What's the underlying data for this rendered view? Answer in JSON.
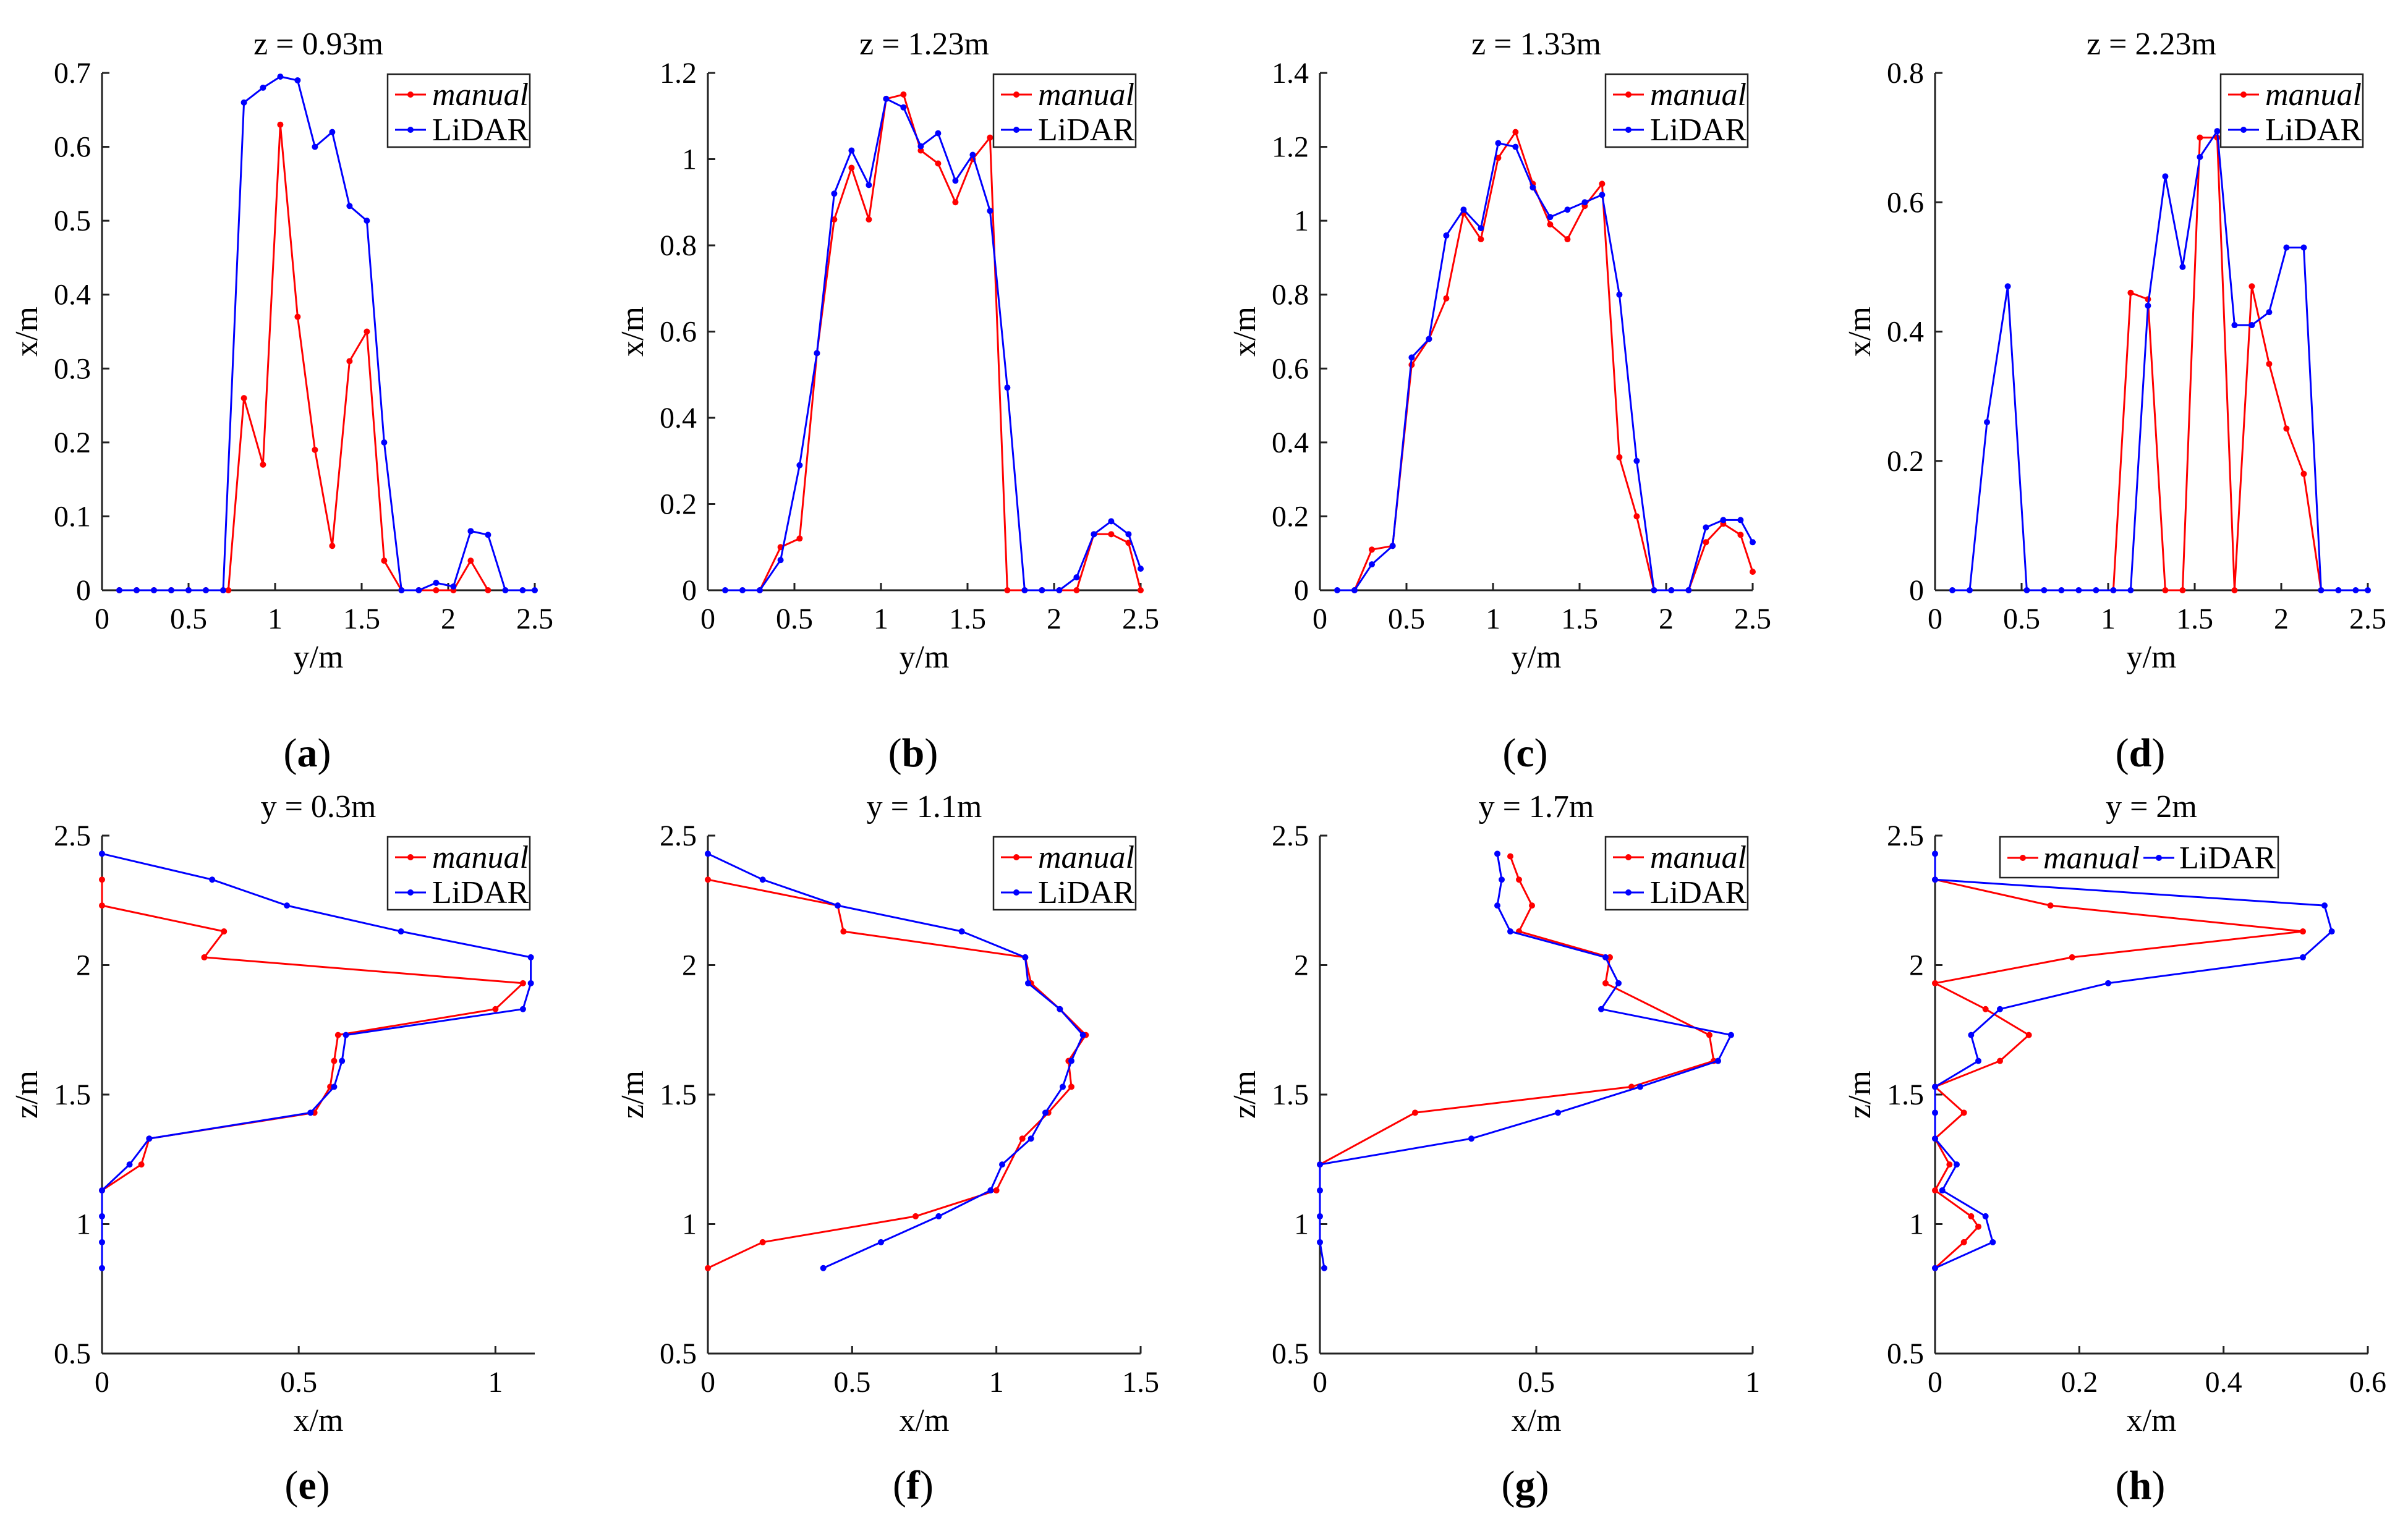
{
  "chart_data": [
    {
      "type": "line",
      "id": "a",
      "caption": "a",
      "title": "z = 0.93m",
      "xlabel": "y/m",
      "ylabel": "x/m",
      "xlim": [
        0,
        2.5
      ],
      "ylim": [
        0,
        0.7
      ],
      "xticks": [
        0,
        0.5,
        1,
        1.5,
        2,
        2.5
      ],
      "xtick_labels": [
        "0",
        "0.5",
        "1",
        "1.5",
        "2",
        "2.5"
      ],
      "yticks": [
        0,
        0.1,
        0.2,
        0.3,
        0.4,
        0.5,
        0.6,
        0.7
      ],
      "ytick_labels": [
        "0",
        "0.1",
        "0.2",
        "0.3",
        "0.4",
        "0.5",
        "0.6",
        "0.7"
      ],
      "legend": "top-right",
      "legend_layout": "vertical",
      "series": [
        {
          "name": "manual",
          "color": "#ff0000",
          "italic": true,
          "x": [
            0.1,
            0.2,
            0.3,
            0.4,
            0.5,
            0.6,
            0.7,
            0.73,
            0.82,
            0.93,
            1.03,
            1.13,
            1.23,
            1.33,
            1.43,
            1.53,
            1.63,
            1.73,
            1.83,
            1.93,
            2.03,
            2.13,
            2.23
          ],
          "y": [
            0,
            0,
            0,
            0,
            0,
            0,
            0,
            0,
            0.26,
            0.17,
            0.63,
            0.37,
            0.19,
            0.06,
            0.31,
            0.35,
            0.04,
            0,
            0,
            0,
            0,
            0.04,
            0
          ]
        },
        {
          "name": "LiDAR",
          "color": "#0000ff",
          "italic": false,
          "x": [
            0.1,
            0.2,
            0.3,
            0.4,
            0.5,
            0.6,
            0.7,
            0.82,
            0.93,
            1.03,
            1.13,
            1.23,
            1.33,
            1.43,
            1.53,
            1.63,
            1.73,
            1.83,
            1.93,
            2.03,
            2.13,
            2.23,
            2.33,
            2.43,
            2.5
          ],
          "y": [
            0,
            0,
            0,
            0,
            0,
            0,
            0,
            0.66,
            0.68,
            0.695,
            0.69,
            0.6,
            0.62,
            0.52,
            0.5,
            0.2,
            0,
            0,
            0.01,
            0.005,
            0.08,
            0.075,
            0,
            0,
            0
          ]
        }
      ]
    },
    {
      "type": "line",
      "id": "b",
      "caption": "b",
      "title": "z = 1.23m",
      "xlabel": "y/m",
      "ylabel": "x/m",
      "xlim": [
        0,
        2.5
      ],
      "ylim": [
        0,
        1.2
      ],
      "xticks": [
        0,
        0.5,
        1,
        1.5,
        2,
        2.5
      ],
      "xtick_labels": [
        "0",
        "0.5",
        "1",
        "1.5",
        "2",
        "2.5"
      ],
      "yticks": [
        0,
        0.2,
        0.4,
        0.6,
        0.8,
        1,
        1.2
      ],
      "ytick_labels": [
        "0",
        "0.2",
        "0.4",
        "0.6",
        "0.8",
        "1",
        "1.2"
      ],
      "legend": "top-right",
      "legend_layout": "vertical",
      "series": [
        {
          "name": "manual",
          "color": "#ff0000",
          "italic": true,
          "x": [
            0.3,
            0.42,
            0.53,
            0.63,
            0.73,
            0.83,
            0.93,
            1.03,
            1.13,
            1.23,
            1.33,
            1.43,
            1.53,
            1.63,
            1.73,
            1.83,
            1.93,
            2.03,
            2.13,
            2.23,
            2.33,
            2.43,
            2.5
          ],
          "y": [
            0,
            0.1,
            0.12,
            0.55,
            0.86,
            0.98,
            0.86,
            1.14,
            1.15,
            1.02,
            0.99,
            0.9,
            1.0,
            1.05,
            0,
            0,
            0,
            0,
            0,
            0.13,
            0.13,
            0.11,
            0
          ]
        },
        {
          "name": "LiDAR",
          "color": "#0000ff",
          "italic": false,
          "x": [
            0.1,
            0.2,
            0.3,
            0.42,
            0.53,
            0.63,
            0.73,
            0.83,
            0.93,
            1.03,
            1.13,
            1.23,
            1.33,
            1.43,
            1.53,
            1.63,
            1.73,
            1.83,
            1.93,
            2.03,
            2.13,
            2.23,
            2.33,
            2.43,
            2.5
          ],
          "y": [
            0,
            0,
            0,
            0.07,
            0.29,
            0.55,
            0.92,
            1.02,
            0.94,
            1.14,
            1.12,
            1.03,
            1.06,
            0.95,
            1.01,
            0.88,
            0.47,
            0,
            0,
            0,
            0.03,
            0.13,
            0.16,
            0.13,
            0.05
          ]
        }
      ]
    },
    {
      "type": "line",
      "id": "c",
      "caption": "c",
      "title": "z = 1.33m",
      "xlabel": "y/m",
      "ylabel": "x/m",
      "xlim": [
        0,
        2.5
      ],
      "ylim": [
        0,
        1.4
      ],
      "xticks": [
        0,
        0.5,
        1,
        1.5,
        2,
        2.5
      ],
      "xtick_labels": [
        "0",
        "0.5",
        "1",
        "1.5",
        "2",
        "2.5"
      ],
      "yticks": [
        0,
        0.2,
        0.4,
        0.6,
        0.8,
        1,
        1.2,
        1.4
      ],
      "ytick_labels": [
        "0",
        "0.2",
        "0.4",
        "0.6",
        "0.8",
        "1",
        "1.2",
        "1.4"
      ],
      "legend": "top-right",
      "legend_layout": "vertical",
      "series": [
        {
          "name": "manual",
          "color": "#ff0000",
          "italic": true,
          "x": [
            0.2,
            0.3,
            0.42,
            0.53,
            0.63,
            0.73,
            0.83,
            0.93,
            1.03,
            1.13,
            1.23,
            1.33,
            1.43,
            1.53,
            1.63,
            1.73,
            1.83,
            1.93,
            2.03,
            2.13,
            2.23,
            2.33,
            2.43,
            2.5
          ],
          "y": [
            0,
            0.11,
            0.12,
            0.61,
            0.68,
            0.79,
            1.02,
            0.95,
            1.17,
            1.24,
            1.1,
            0.99,
            0.95,
            1.04,
            1.1,
            0.36,
            0.2,
            0,
            0,
            0,
            0.13,
            0.18,
            0.15,
            0.05
          ]
        },
        {
          "name": "LiDAR",
          "color": "#0000ff",
          "italic": false,
          "x": [
            0.1,
            0.2,
            0.3,
            0.42,
            0.53,
            0.63,
            0.73,
            0.83,
            0.93,
            1.03,
            1.13,
            1.23,
            1.33,
            1.43,
            1.53,
            1.63,
            1.73,
            1.83,
            1.93,
            2.03,
            2.13,
            2.23,
            2.33,
            2.43,
            2.5
          ],
          "y": [
            0,
            0,
            0.07,
            0.12,
            0.63,
            0.68,
            0.96,
            1.03,
            0.98,
            1.21,
            1.2,
            1.09,
            1.01,
            1.03,
            1.05,
            1.07,
            0.8,
            0.35,
            0,
            0,
            0,
            0.17,
            0.19,
            0.19,
            0.13
          ]
        }
      ]
    },
    {
      "type": "line",
      "id": "d",
      "caption": "d",
      "title": "z = 2.23m",
      "xlabel": "y/m",
      "ylabel": "x/m",
      "xlim": [
        0,
        2.5
      ],
      "ylim": [
        0,
        0.8
      ],
      "xticks": [
        0,
        0.5,
        1,
        1.5,
        2,
        2.5
      ],
      "xtick_labels": [
        "0",
        "0.5",
        "1",
        "1.5",
        "2",
        "2.5"
      ],
      "yticks": [
        0,
        0.2,
        0.4,
        0.6,
        0.8
      ],
      "ytick_labels": [
        "0",
        "0.2",
        "0.4",
        "0.6",
        "0.8"
      ],
      "legend": "top-right",
      "legend_layout": "vertical",
      "series": [
        {
          "name": "manual",
          "color": "#ff0000",
          "italic": true,
          "x": [
            1.03,
            1.13,
            1.23,
            1.33,
            1.43,
            1.53,
            1.63,
            1.73,
            1.83,
            1.93,
            2.03,
            2.13,
            2.23
          ],
          "y": [
            0,
            0.46,
            0.45,
            0,
            0,
            0.7,
            0.7,
            0,
            0.47,
            0.35,
            0.25,
            0.18,
            0
          ]
        },
        {
          "name": "LiDAR",
          "color": "#0000ff",
          "italic": false,
          "x": [
            0.1,
            0.2,
            0.3,
            0.42,
            0.53,
            0.63,
            0.73,
            0.83,
            0.93,
            1.03,
            1.13,
            1.23,
            1.33,
            1.43,
            1.53,
            1.63,
            1.73,
            1.83,
            1.93,
            2.03,
            2.13,
            2.23,
            2.33,
            2.43,
            2.5
          ],
          "y": [
            0,
            0,
            0.26,
            0.47,
            0,
            0,
            0,
            0,
            0,
            0,
            0,
            0.44,
            0.64,
            0.5,
            0.67,
            0.71,
            0.41,
            0.41,
            0.43,
            0.53,
            0.53,
            0,
            0,
            0,
            0
          ]
        }
      ]
    },
    {
      "type": "line",
      "id": "e",
      "caption": "e",
      "title": "y = 0.3m",
      "xlabel": "x/m",
      "ylabel": "z/m",
      "xlim": [
        0,
        1.1
      ],
      "ylim": [
        0.5,
        2.5
      ],
      "xticks": [
        0,
        0.5,
        1
      ],
      "xtick_labels": [
        "0",
        "0.5",
        "1"
      ],
      "yticks": [
        0.5,
        1,
        1.5,
        2,
        2.5
      ],
      "ytick_labels": [
        "0.5",
        "1",
        "1.5",
        "2",
        "2.5"
      ],
      "legend": "top-right",
      "legend_layout": "vertical",
      "series": [
        {
          "name": "manual",
          "color": "#ff0000",
          "italic": true,
          "x": [
            0,
            0,
            0.31,
            0.26,
            1.07,
            1.0,
            0.6,
            0.59,
            0.58,
            0.54,
            0.12,
            0.1,
            0
          ],
          "y": [
            2.33,
            2.23,
            2.13,
            2.03,
            1.93,
            1.83,
            1.73,
            1.63,
            1.53,
            1.43,
            1.33,
            1.23,
            1.13
          ]
        },
        {
          "name": "LiDAR",
          "color": "#0000ff",
          "italic": false,
          "x": [
            0,
            0.28,
            0.47,
            0.76,
            1.09,
            1.09,
            1.07,
            0.62,
            0.61,
            0.59,
            0.53,
            0.12,
            0.07,
            0,
            0,
            0,
            0
          ],
          "y": [
            2.43,
            2.33,
            2.23,
            2.13,
            2.03,
            1.93,
            1.83,
            1.73,
            1.63,
            1.53,
            1.43,
            1.33,
            1.23,
            1.13,
            1.03,
            0.93,
            0.83
          ]
        }
      ]
    },
    {
      "type": "line",
      "id": "f",
      "caption": "f",
      "title": "y = 1.1m",
      "xlabel": "x/m",
      "ylabel": "z/m",
      "xlim": [
        0,
        1.5
      ],
      "ylim": [
        0.5,
        2.5
      ],
      "xticks": [
        0,
        0.5,
        1,
        1.5
      ],
      "xtick_labels": [
        "0",
        "0.5",
        "1",
        "1.5"
      ],
      "yticks": [
        0.5,
        1,
        1.5,
        2,
        2.5
      ],
      "ytick_labels": [
        "0.5",
        "1",
        "1.5",
        "2",
        "2.5"
      ],
      "legend": "top-right",
      "legend_layout": "vertical",
      "series": [
        {
          "name": "manual",
          "color": "#ff0000",
          "italic": true,
          "x": [
            0,
            0.45,
            0.47,
            1.1,
            1.12,
            1.22,
            1.31,
            1.25,
            1.26,
            1.18,
            1.09,
            1.0,
            0.72,
            0.19,
            0
          ],
          "y": [
            2.33,
            2.23,
            2.13,
            2.03,
            1.93,
            1.83,
            1.73,
            1.63,
            1.53,
            1.43,
            1.33,
            1.13,
            1.03,
            0.93,
            0.83
          ]
        },
        {
          "name": "LiDAR",
          "color": "#0000ff",
          "italic": false,
          "x": [
            0,
            0.19,
            0.45,
            0.88,
            1.1,
            1.11,
            1.22,
            1.3,
            1.26,
            1.23,
            1.17,
            1.12,
            1.02,
            0.98,
            0.8,
            0.6,
            0.4
          ],
          "y": [
            2.43,
            2.33,
            2.23,
            2.13,
            2.03,
            1.93,
            1.83,
            1.73,
            1.63,
            1.53,
            1.43,
            1.33,
            1.23,
            1.13,
            1.03,
            0.93,
            0.83
          ]
        }
      ]
    },
    {
      "type": "line",
      "id": "g",
      "caption": "g",
      "title": "y = 1.7m",
      "xlabel": "x/m",
      "ylabel": "z/m",
      "xlim": [
        0,
        1
      ],
      "ylim": [
        0.5,
        2.5
      ],
      "xticks": [
        0,
        0.5,
        1
      ],
      "xtick_labels": [
        "0",
        "0.5",
        "1"
      ],
      "yticks": [
        0.5,
        1,
        1.5,
        2,
        2.5
      ],
      "ytick_labels": [
        "0.5",
        "1",
        "1.5",
        "2",
        "2.5"
      ],
      "legend": "top-right",
      "legend_layout": "vertical",
      "series": [
        {
          "name": "manual",
          "color": "#ff0000",
          "italic": true,
          "x": [
            0.44,
            0.46,
            0.49,
            0.46,
            0.67,
            0.66,
            0.9,
            0.91,
            0.72,
            0.22,
            0
          ],
          "y": [
            2.42,
            2.33,
            2.23,
            2.13,
            2.03,
            1.93,
            1.73,
            1.63,
            1.53,
            1.43,
            1.23
          ]
        },
        {
          "name": "LiDAR",
          "color": "#0000ff",
          "italic": false,
          "x": [
            0.41,
            0.42,
            0.41,
            0.44,
            0.66,
            0.69,
            0.65,
            0.95,
            0.92,
            0.74,
            0.55,
            0.35,
            0,
            0,
            0,
            0,
            0.01
          ],
          "y": [
            2.43,
            2.33,
            2.23,
            2.13,
            2.03,
            1.93,
            1.83,
            1.73,
            1.63,
            1.53,
            1.43,
            1.33,
            1.23,
            1.13,
            1.03,
            0.93,
            0.83
          ]
        }
      ]
    },
    {
      "type": "line",
      "id": "h",
      "caption": "h",
      "title": "y = 2m",
      "xlabel": "x/m",
      "ylabel": "z/m",
      "xlim": [
        0,
        0.6
      ],
      "ylim": [
        0.5,
        2.5
      ],
      "xticks": [
        0,
        0.2,
        0.4,
        0.6
      ],
      "xtick_labels": [
        "0",
        "0.2",
        "0.4",
        "0.6"
      ],
      "yticks": [
        0.5,
        1,
        1.5,
        2,
        2.5
      ],
      "ytick_labels": [
        "0.5",
        "1",
        "1.5",
        "2",
        "2.5"
      ],
      "legend": "top-center",
      "legend_layout": "horizontal",
      "series": [
        {
          "name": "manual",
          "color": "#ff0000",
          "italic": true,
          "x": [
            0,
            0.16,
            0.51,
            0.19,
            0,
            0.07,
            0.13,
            0.09,
            0,
            0.04,
            0,
            0.02,
            0,
            0.05,
            0.06,
            0.04,
            0
          ],
          "y": [
            2.33,
            2.23,
            2.13,
            2.03,
            1.93,
            1.83,
            1.73,
            1.63,
            1.53,
            1.43,
            1.33,
            1.23,
            1.13,
            1.03,
            0.99,
            0.93,
            0.83
          ]
        },
        {
          "name": "LiDAR",
          "color": "#0000ff",
          "italic": false,
          "x": [
            0,
            0,
            0.54,
            0.55,
            0.51,
            0.24,
            0.09,
            0.05,
            0.06,
            0,
            0,
            0,
            0.03,
            0.01,
            0.07,
            0.08,
            0
          ],
          "y": [
            2.43,
            2.33,
            2.23,
            2.13,
            2.03,
            1.93,
            1.83,
            1.73,
            1.63,
            1.53,
            1.43,
            1.33,
            1.23,
            1.13,
            1.03,
            0.93,
            0.83
          ]
        }
      ]
    }
  ]
}
